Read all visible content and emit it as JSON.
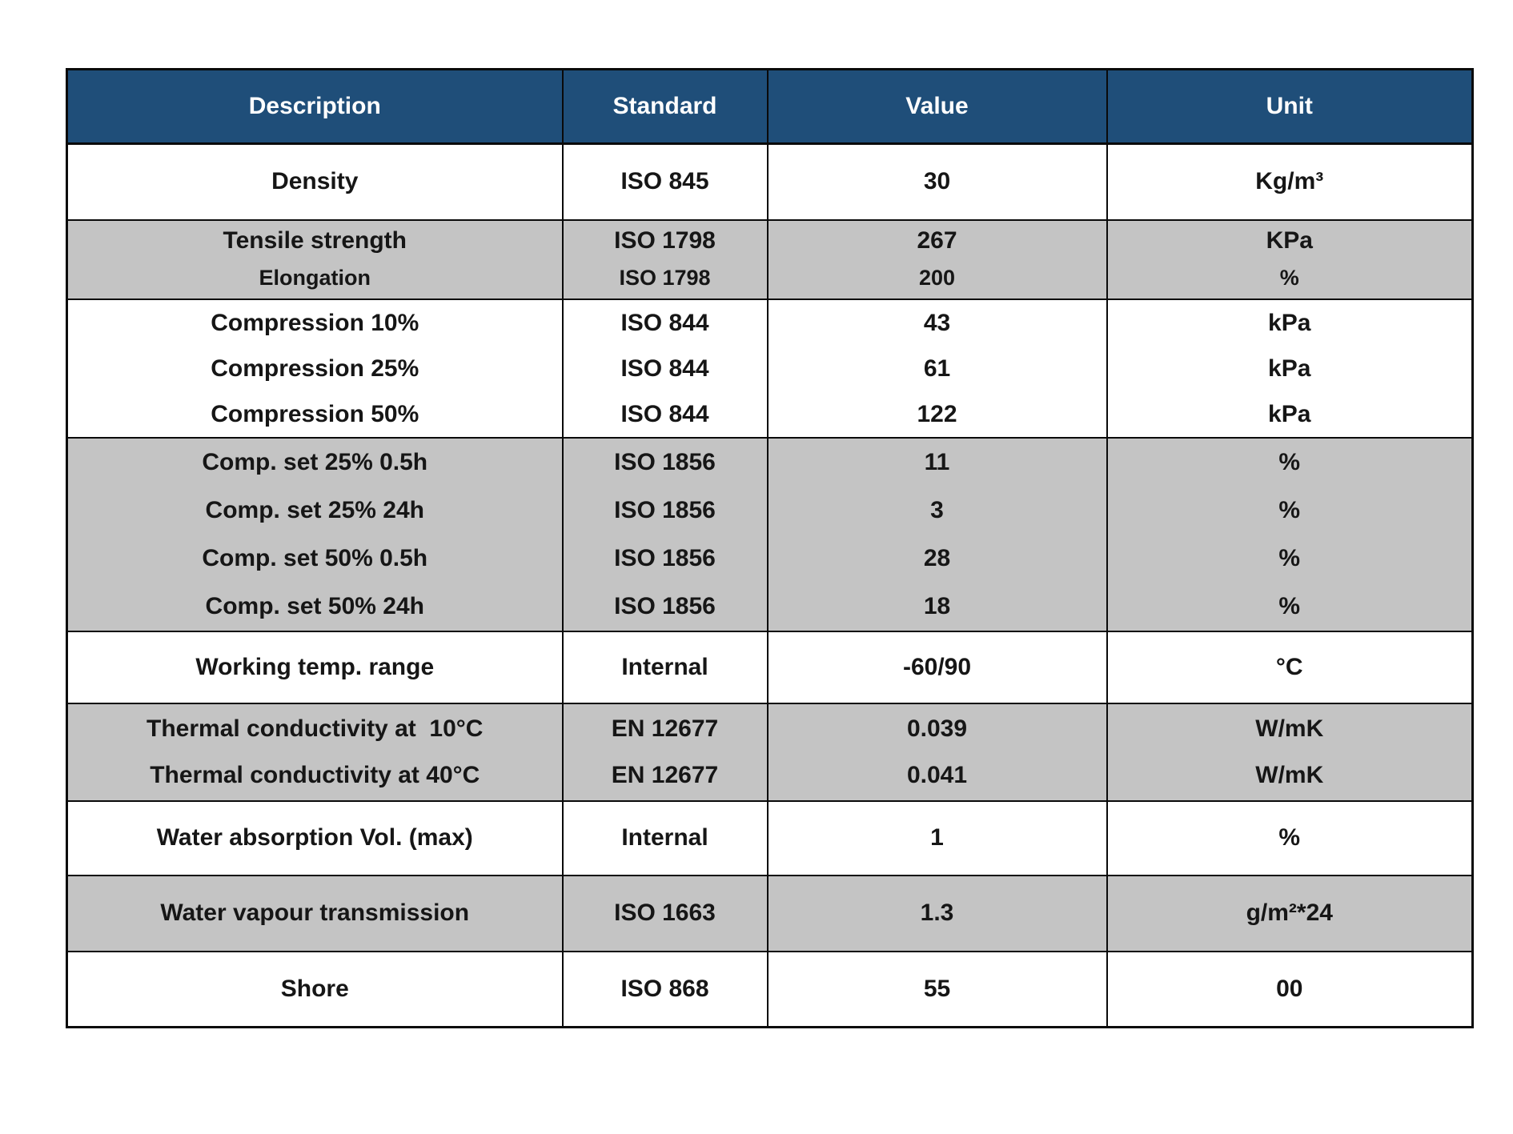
{
  "page": {
    "background": "#FFFFFF"
  },
  "table": {
    "header_bg": "#1F4E79",
    "header_text_color": "#FFFFFF",
    "stripe_color": "#C4C4C4",
    "border_color": "#0A0A0A",
    "columns": [
      {
        "key": "description",
        "label": "Description"
      },
      {
        "key": "standard",
        "label": "Standard"
      },
      {
        "key": "value",
        "label": "Value"
      },
      {
        "key": "unit",
        "label": "Unit"
      }
    ],
    "groups": [
      {
        "shade": "white",
        "rows": [
          {
            "description": "Density",
            "standard": "ISO 845",
            "value": "30",
            "unit": "Kg/m³"
          }
        ]
      },
      {
        "shade": "gray",
        "rows": [
          {
            "description": "Tensile strength",
            "standard": "ISO 1798",
            "value": "267",
            "unit": "KPa"
          },
          {
            "description": "Elongation",
            "standard": "ISO 1798",
            "value": "200",
            "unit": "%"
          }
        ]
      },
      {
        "shade": "white",
        "rows": [
          {
            "description": "Compression 10%",
            "standard": "ISO 844",
            "value": "43",
            "unit": "kPa"
          },
          {
            "description": "Compression 25%",
            "standard": "ISO 844",
            "value": "61",
            "unit": "kPa"
          },
          {
            "description": "Compression 50%",
            "standard": "ISO 844",
            "value": "122",
            "unit": "kPa"
          }
        ]
      },
      {
        "shade": "gray",
        "rows": [
          {
            "description": "Comp. set 25% 0.5h",
            "standard": "ISO 1856",
            "value": "11",
            "unit": "%"
          },
          {
            "description": "Comp. set 25% 24h",
            "standard": "ISO 1856",
            "value": "3",
            "unit": "%"
          },
          {
            "description": "Comp. set 50% 0.5h",
            "standard": "ISO 1856",
            "value": "28",
            "unit": "%"
          },
          {
            "description": "Comp. set 50% 24h",
            "standard": "ISO 1856",
            "value": "18",
            "unit": "%"
          }
        ]
      },
      {
        "shade": "white",
        "rows": [
          {
            "description": "Working temp. range",
            "standard": "Internal",
            "value": "-60/90",
            "unit": "°C"
          }
        ]
      },
      {
        "shade": "gray",
        "rows": [
          {
            "description": "Thermal conductivity at  10°C",
            "standard": "EN 12677",
            "value": "0.039",
            "unit": "W/mK"
          },
          {
            "description": "Thermal conductivity at 40°C",
            "standard": "EN 12677",
            "value": "0.041",
            "unit": "W/mK"
          }
        ]
      },
      {
        "shade": "white",
        "rows": [
          {
            "description": "Water absorption Vol. (max)",
            "standard": "Internal",
            "value": "1",
            "unit": "%"
          }
        ]
      },
      {
        "shade": "gray",
        "rows": [
          {
            "description": "Water vapour transmission",
            "standard": "ISO 1663",
            "value": "1.3",
            "unit": "g/m²*24"
          }
        ]
      },
      {
        "shade": "white",
        "rows": [
          {
            "description": "Shore",
            "standard": "ISO 868",
            "value": "55",
            "unit": "00"
          }
        ]
      }
    ]
  }
}
